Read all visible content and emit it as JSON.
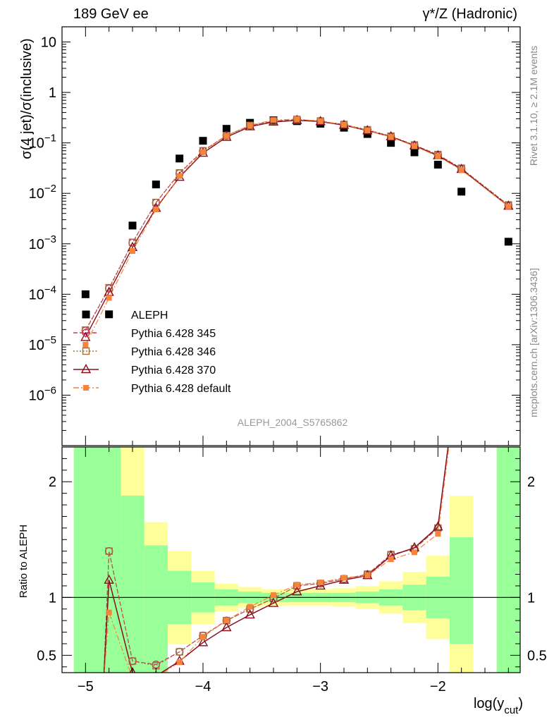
{
  "header": {
    "left_label": "189 GeV ee",
    "right_label": "γ*/Z (Hadronic)"
  },
  "side_labels": {
    "rivet": "Rivet 3.1.10, ≥ 2.1M events",
    "mcplots": "mcplots.cern.ch [arXiv:1306.3436]"
  },
  "analysis_id": "ALEPH_2004_S5765862",
  "colors": {
    "data": "#000000",
    "p345": "#cc3366",
    "p346": "#a0703a",
    "p370": "#880e1e",
    "pdefault": "#f6843a",
    "band_green": "#99ff99",
    "band_yellow": "#ffff99"
  },
  "chart_data": [
    {
      "type": "scatter",
      "panel": "main",
      "ylabel": "σ(4 jet)/σ(inclusive)",
      "yscale": "log",
      "ylim": [
        1e-07,
        20
      ],
      "xlim": [
        -5.2,
        -1.3
      ],
      "y_tick_labels": [
        "10^-6",
        "10^-5",
        "10^-4",
        "10^-3",
        "10^-2",
        "10^-1",
        "1",
        "10"
      ],
      "legend_position": "lower-left",
      "series": [
        {
          "name": "ALEPH",
          "key": "data",
          "marker": "filled-square",
          "x": [
            -5.0,
            -4.8,
            -4.6,
            -4.4,
            -4.2,
            -4.0,
            -3.8,
            -3.6,
            -3.4,
            -3.2,
            -3.0,
            -2.8,
            -2.6,
            -2.4,
            -2.2,
            -2.0,
            -1.8,
            -1.4
          ],
          "y": [
            0.0001,
            4e-05,
            0.0023,
            0.015,
            0.049,
            0.11,
            0.19,
            0.25,
            0.28,
            0.27,
            0.24,
            0.2,
            0.15,
            0.1,
            0.065,
            0.037,
            0.0108,
            0.0011
          ]
        },
        {
          "name": "Pythia 6.428 345",
          "key": "p345",
          "marker": "open-circle",
          "line": "dashed",
          "x": [
            -5.0,
            -4.8,
            -4.6,
            -4.4,
            -4.2,
            -4.0,
            -3.8,
            -3.6,
            -3.4,
            -3.2,
            -3.0,
            -2.8,
            -2.6,
            -2.4,
            -2.2,
            -2.0,
            -1.8,
            -1.4
          ],
          "y": [
            1.9e-05,
            0.00013,
            0.00105,
            0.0065,
            0.025,
            0.069,
            0.14,
            0.22,
            0.27,
            0.29,
            0.27,
            0.23,
            0.18,
            0.135,
            0.09,
            0.058,
            0.031,
            0.0058
          ]
        },
        {
          "name": "Pythia 6.428 346",
          "key": "p346",
          "marker": "open-square",
          "line": "dotted",
          "x": [
            -5.0,
            -4.8,
            -4.6,
            -4.4,
            -4.2,
            -4.0,
            -3.8,
            -3.6,
            -3.4,
            -3.2,
            -3.0,
            -2.8,
            -2.6,
            -2.4,
            -2.2,
            -2.0,
            -1.8,
            -1.4
          ],
          "y": [
            1.95e-05,
            0.000135,
            0.00107,
            0.0066,
            0.0255,
            0.07,
            0.14,
            0.222,
            0.272,
            0.292,
            0.272,
            0.232,
            0.182,
            0.136,
            0.091,
            0.059,
            0.0315,
            0.0059
          ]
        },
        {
          "name": "Pythia 6.428 370",
          "key": "p370",
          "marker": "open-triangle",
          "line": "solid",
          "x": [
            -5.0,
            -4.8,
            -4.6,
            -4.4,
            -4.2,
            -4.0,
            -3.8,
            -3.6,
            -3.4,
            -3.2,
            -3.0,
            -2.8,
            -2.6,
            -2.4,
            -2.2,
            -2.0,
            -1.8,
            -1.4
          ],
          "y": [
            1.4e-05,
            0.00011,
            0.00085,
            0.0051,
            0.021,
            0.063,
            0.13,
            0.21,
            0.26,
            0.28,
            0.265,
            0.225,
            0.175,
            0.133,
            0.088,
            0.056,
            0.03,
            0.0056
          ]
        },
        {
          "name": "Pythia 6.428 default",
          "key": "pdefault",
          "marker": "filled-square-small",
          "line": "dash-dot",
          "x": [
            -5.0,
            -4.8,
            -4.6,
            -4.4,
            -4.2,
            -4.0,
            -3.8,
            -3.6,
            -3.4,
            -3.2,
            -3.0,
            -2.8,
            -2.6,
            -2.4,
            -2.2,
            -2.0,
            -1.8,
            -1.4
          ],
          "y": [
            1e-05,
            8.5e-05,
            0.00072,
            0.0048,
            0.022,
            0.066,
            0.138,
            0.225,
            0.283,
            0.295,
            0.27,
            0.23,
            0.178,
            0.13,
            0.086,
            0.054,
            0.029,
            0.0055
          ]
        }
      ]
    },
    {
      "type": "line",
      "panel": "ratio",
      "ylabel": "Ratio to ALEPH",
      "xlabel": "log(y_cut)",
      "xlim": [
        -5.2,
        -1.3
      ],
      "ylim": [
        0.35,
        2.3
      ],
      "x_ticks": [
        -5,
        -4,
        -3,
        -2
      ],
      "x_tick_labels": [
        "−5",
        "−4",
        "−3",
        "−2"
      ],
      "y_ticks": [
        0.5,
        1,
        2
      ],
      "y_tick_labels": [
        "0.5",
        "1",
        "2"
      ],
      "reference_line": 1,
      "bands": [
        {
          "x0": -5.1,
          "x1": -4.9,
          "green": [
            0.0,
            2.5
          ],
          "yellow": [
            0.0,
            2.5
          ]
        },
        {
          "x0": -4.9,
          "x1": -4.7,
          "green": [
            0.0,
            2.5
          ],
          "yellow": [
            0.0,
            2.5
          ]
        },
        {
          "x0": -4.7,
          "x1": -4.5,
          "green": [
            0.0,
            1.88
          ],
          "yellow": [
            0.0,
            2.5
          ]
        },
        {
          "x0": -4.5,
          "x1": -4.3,
          "green": [
            0.35,
            1.45
          ],
          "yellow": [
            0.3,
            1.65
          ]
        },
        {
          "x0": -4.3,
          "x1": -4.1,
          "green": [
            0.77,
            1.23
          ],
          "yellow": [
            0.6,
            1.4
          ]
        },
        {
          "x0": -4.1,
          "x1": -3.9,
          "green": [
            0.87,
            1.13
          ],
          "yellow": [
            0.77,
            1.23
          ]
        },
        {
          "x0": -3.9,
          "x1": -3.7,
          "green": [
            0.93,
            1.07
          ],
          "yellow": [
            0.88,
            1.12
          ]
        },
        {
          "x0": -3.7,
          "x1": -3.5,
          "green": [
            0.95,
            1.05
          ],
          "yellow": [
            0.91,
            1.09
          ]
        },
        {
          "x0": -3.5,
          "x1": -3.3,
          "green": [
            0.96,
            1.04
          ],
          "yellow": [
            0.93,
            1.07
          ]
        },
        {
          "x0": -3.3,
          "x1": -3.1,
          "green": [
            0.96,
            1.04
          ],
          "yellow": [
            0.93,
            1.07
          ]
        },
        {
          "x0": -3.1,
          "x1": -2.9,
          "green": [
            0.96,
            1.04
          ],
          "yellow": [
            0.93,
            1.07
          ]
        },
        {
          "x0": -2.9,
          "x1": -2.7,
          "green": [
            0.96,
            1.04
          ],
          "yellow": [
            0.92,
            1.08
          ]
        },
        {
          "x0": -2.7,
          "x1": -2.5,
          "green": [
            0.95,
            1.05
          ],
          "yellow": [
            0.9,
            1.1
          ]
        },
        {
          "x0": -2.5,
          "x1": -2.3,
          "green": [
            0.93,
            1.07
          ],
          "yellow": [
            0.86,
            1.14
          ]
        },
        {
          "x0": -2.3,
          "x1": -2.1,
          "green": [
            0.89,
            1.11
          ],
          "yellow": [
            0.78,
            1.22
          ]
        },
        {
          "x0": -2.1,
          "x1": -1.9,
          "green": [
            0.82,
            1.18
          ],
          "yellow": [
            0.64,
            1.36
          ]
        },
        {
          "x0": -1.9,
          "x1": -1.7,
          "green": [
            0.6,
            1.52
          ],
          "yellow": [
            0.2,
            1.88
          ]
        },
        {
          "x0": -1.5,
          "x1": -1.3,
          "green": [
            0.0,
            2.5
          ],
          "yellow": [
            0.0,
            2.5
          ]
        }
      ],
      "series": [
        {
          "name": "Pythia 6.428 345",
          "key": "p345",
          "x": [
            -4.8,
            -4.6,
            -4.4,
            -4.2,
            -4.0,
            -3.8,
            -3.6,
            -3.4,
            -3.2,
            -3.0,
            -2.8,
            -2.6,
            -2.4,
            -2.2,
            -2.0
          ],
          "y": [
            1.4,
            0.45,
            0.42,
            0.53,
            0.67,
            0.8,
            0.9,
            0.99,
            1.1,
            1.12,
            1.16,
            1.2,
            1.37,
            1.42,
            1.6
          ]
        },
        {
          "name": "Pythia 6.428 346",
          "key": "p346",
          "x": [
            -4.8,
            -4.6,
            -4.4,
            -4.2,
            -4.0,
            -3.8,
            -3.6,
            -3.4,
            -3.2,
            -3.0,
            -2.8,
            -2.6,
            -2.4,
            -2.2,
            -2.0
          ],
          "y": [
            1.4,
            0.45,
            0.41,
            0.53,
            0.67,
            0.8,
            0.9,
            0.99,
            1.1,
            1.12,
            1.16,
            1.2,
            1.37,
            1.42,
            1.6
          ]
        },
        {
          "name": "Pythia 6.428 370",
          "key": "p370",
          "x": [
            -4.8,
            -4.6,
            -4.4,
            -4.2,
            -4.0,
            -3.8,
            -3.6,
            -3.4,
            -3.2,
            -3.0,
            -2.8,
            -2.6,
            -2.4,
            -2.2,
            -2.0
          ],
          "y": [
            1.15,
            0.35,
            0.32,
            0.45,
            0.61,
            0.74,
            0.85,
            0.95,
            1.05,
            1.1,
            1.15,
            1.19,
            1.36,
            1.43,
            1.61
          ]
        },
        {
          "name": "Pythia 6.428 default",
          "key": "pdefault",
          "x": [
            -4.8,
            -4.6,
            -4.4,
            -4.2,
            -4.0,
            -3.8,
            -3.6,
            -3.4,
            -3.2,
            -3.0,
            -2.8,
            -2.6,
            -2.4,
            -2.2,
            -2.0
          ],
          "y": [
            0.87,
            0.3,
            0.31,
            0.44,
            0.66,
            0.8,
            0.92,
            1.02,
            1.11,
            1.13,
            1.17,
            1.19,
            1.33,
            1.39,
            1.55
          ]
        }
      ]
    }
  ]
}
